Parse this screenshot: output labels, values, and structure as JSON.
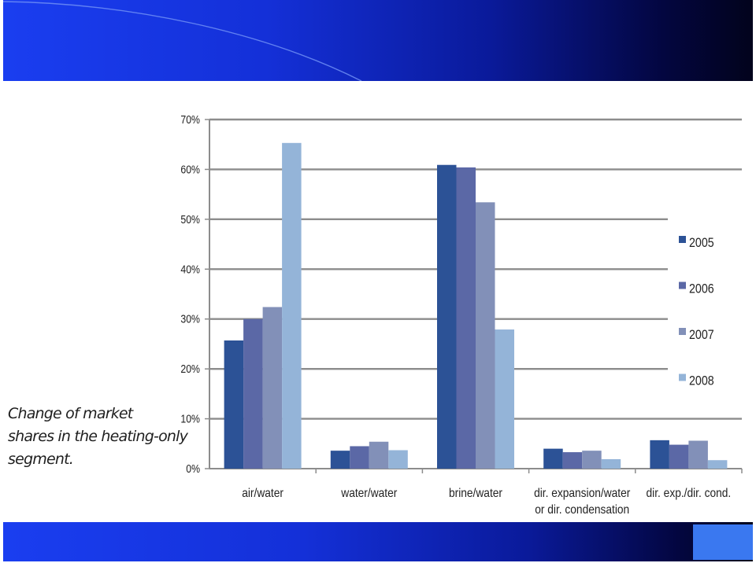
{
  "caption": {
    "lines": [
      "Change of market",
      "shares in the heating-only",
      "segment."
    ]
  },
  "chart_data": {
    "type": "bar",
    "title": "",
    "xlabel": "",
    "ylabel": "",
    "ylim": [
      0,
      70
    ],
    "yticks": [
      "0%",
      "10%",
      "20%",
      "30%",
      "40%",
      "50%",
      "60%",
      "70%"
    ],
    "grid": true,
    "legend_position": "right",
    "categories": [
      "air/water",
      "water/water",
      "brine/water",
      "dir. expansion/water or dir. condensation",
      "dir. exp./dir. cond."
    ],
    "category_label_lines": [
      [
        "air/water"
      ],
      [
        "water/water"
      ],
      [
        "brine/water"
      ],
      [
        "dir. expansion/water",
        "or dir. condensation"
      ],
      [
        "dir. exp./dir. cond."
      ]
    ],
    "series": [
      {
        "name": "2005",
        "color": "#2c5296",
        "values": [
          25.7,
          3.6,
          60.9,
          4.0,
          5.7
        ]
      },
      {
        "name": "2006",
        "color": "#5b68a6",
        "values": [
          30.0,
          4.5,
          60.4,
          3.3,
          4.8
        ]
      },
      {
        "name": "2007",
        "color": "#8290b8",
        "values": [
          32.4,
          5.4,
          53.4,
          3.6,
          5.6
        ]
      },
      {
        "name": "2008",
        "color": "#94b4d8",
        "values": [
          65.3,
          3.7,
          27.9,
          1.9,
          1.7
        ]
      }
    ]
  }
}
